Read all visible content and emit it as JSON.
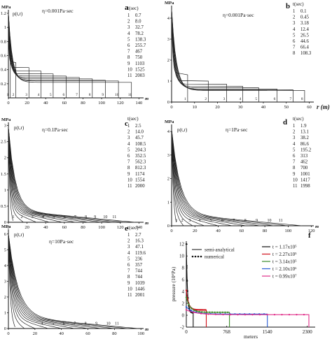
{
  "chart_data": [
    {
      "panel": "a",
      "type": "line",
      "ylabel": "MPa",
      "curve_label": "p(t,r)",
      "xunit": "m",
      "annotation": "η=0.001Pa·sec",
      "legend_title": "t(sec)",
      "legend": [
        [
          "1",
          "0.7"
        ],
        [
          "2",
          "8.0"
        ],
        [
          "3",
          "32.7"
        ],
        [
          "4",
          "78.2"
        ],
        [
          "5",
          "138.3"
        ],
        [
          "6",
          "255.7"
        ],
        [
          "7",
          "467"
        ],
        [
          "8",
          "750"
        ],
        [
          "9",
          "1103"
        ],
        [
          "10",
          "1525"
        ],
        [
          "11",
          "2003"
        ]
      ],
      "xticks": [
        "0",
        "20",
        "40",
        "60",
        "80",
        "100",
        "120",
        "140"
      ],
      "yticks": [
        "0.2",
        "0.4",
        "0.6",
        "0.8",
        "1",
        "1.2"
      ],
      "xlim": [
        0,
        145
      ],
      "ylim": [
        0,
        1.25
      ],
      "fronts": [
        2,
        8,
        22,
        35,
        48,
        62,
        76,
        90,
        104,
        118,
        132
      ],
      "levels": [
        0.6,
        0.5,
        0.43,
        0.38,
        0.34,
        0.31,
        0.29,
        0.27,
        0.25,
        0.24,
        0.22
      ],
      "curve_numbers": [
        "1",
        "2",
        "3",
        "4",
        "5",
        "6",
        "7",
        "8",
        "9",
        "10",
        "11"
      ]
    },
    {
      "panel": "b",
      "type": "line",
      "ylabel": "MPa",
      "xlabel": "r (m)",
      "annotation": "η=0.001Pa·sec",
      "legend_title": "t(sec)",
      "legend": [
        [
          "1",
          "0.1"
        ],
        [
          "2",
          "0.45"
        ],
        [
          "3",
          "3.18"
        ],
        [
          "4",
          "12.4"
        ],
        [
          "5",
          "26.5"
        ],
        [
          "6",
          "44.6"
        ],
        [
          "7",
          "66.4"
        ],
        [
          "8",
          "108.3"
        ]
      ],
      "xticks": [
        "0",
        "10",
        "20",
        "30",
        "40",
        "50",
        "60"
      ],
      "yticks": [
        "0",
        "1",
        "2",
        "3",
        "4"
      ],
      "xlim": [
        0,
        62
      ],
      "ylim": [
        0,
        4.6
      ],
      "fronts": [
        7,
        16,
        24,
        31,
        38,
        46,
        53,
        58
      ],
      "levels": [
        1.3,
        1.0,
        0.85,
        0.75,
        0.68,
        0.62,
        0.58,
        0.55
      ],
      "curve_numbers": [
        "1",
        "2",
        "3",
        "4",
        "5",
        "6",
        "7",
        "8"
      ]
    },
    {
      "panel": "c",
      "type": "line",
      "ylabel": "MPa",
      "curve_label": "p(t,r)",
      "xunit": "m",
      "annotation": "η=0.1Pa·sec",
      "legend_title": "t(sec)",
      "legend": [
        [
          "1",
          "2.5"
        ],
        [
          "2",
          "14.0"
        ],
        [
          "3",
          "45.7"
        ],
        [
          "4",
          "108.5"
        ],
        [
          "5",
          "204.3"
        ],
        [
          "6",
          "352.5"
        ],
        [
          "7",
          "562.3"
        ],
        [
          "8",
          "812.3"
        ],
        [
          "9",
          "1174"
        ],
        [
          "10",
          "1554"
        ],
        [
          "11",
          "2000"
        ]
      ],
      "xticks": [
        "0",
        "20",
        "40",
        "60",
        "80",
        "100",
        "120",
        "140"
      ],
      "yticks": [
        "0",
        "0.5",
        "1",
        "1.5",
        "2",
        "2.5",
        "3"
      ],
      "xlim": [
        0,
        145
      ],
      "ylim": [
        0,
        3.1
      ],
      "fronts": [
        5,
        16,
        30,
        44,
        58,
        72,
        86,
        100,
        112,
        124,
        136
      ],
      "curve_numbers": [
        "1",
        "2",
        "3",
        "4",
        "5",
        "6",
        "7",
        "8",
        "9",
        "10",
        "11"
      ]
    },
    {
      "panel": "d",
      "type": "line",
      "ylabel": "MPa",
      "curve_label": "p(t,r)",
      "xunit": "m",
      "annotation": "η=1Pa·sec",
      "legend_title": "t(sec)",
      "legend": [
        [
          "1",
          "1.9"
        ],
        [
          "2",
          "13.1"
        ],
        [
          "3",
          "38.2"
        ],
        [
          "4",
          "86.6"
        ],
        [
          "5",
          "195.2"
        ],
        [
          "6",
          "313"
        ],
        [
          "7",
          "462"
        ],
        [
          "8",
          "700"
        ],
        [
          "9",
          "1001"
        ],
        [
          "10",
          "1417"
        ],
        [
          "11",
          "1998"
        ]
      ],
      "xticks": [
        "0",
        "20",
        "40",
        "60",
        "80",
        "100",
        "120"
      ],
      "yticks": [
        "0",
        "1",
        "2",
        "3",
        "4"
      ],
      "xlim": [
        0,
        122
      ],
      "ylim": [
        0,
        4.3
      ],
      "fronts": [
        4,
        10,
        18,
        28,
        40,
        52,
        64,
        76,
        88,
        100,
        112
      ],
      "curve_numbers": [
        "1",
        "2",
        "3",
        "4",
        "5",
        "6",
        "7",
        "8",
        "9",
        "10",
        "11"
      ]
    },
    {
      "panel": "e",
      "type": "line",
      "ylabel": "MPa",
      "curve_label": "p(t,r)",
      "xunit": "m",
      "annotation": "η=10Pa·sec",
      "legend_title": "t(sec)",
      "legend": [
        [
          "1",
          "2.7"
        ],
        [
          "2",
          "16.3"
        ],
        [
          "3",
          "47.1"
        ],
        [
          "4",
          "119.6"
        ],
        [
          "5",
          "236"
        ],
        [
          "6",
          "357"
        ],
        [
          "7",
          "744"
        ],
        [
          "8",
          "744"
        ],
        [
          "9",
          "1039"
        ],
        [
          "10",
          "1446"
        ],
        [
          "11",
          "2001"
        ]
      ],
      "xticks": [
        "0",
        "20",
        "40",
        "60",
        "80",
        "100"
      ],
      "yticks": [
        "0",
        "1",
        "2",
        "3",
        "4",
        "5",
        "6"
      ],
      "xlim": [
        0,
        102
      ],
      "ylim": [
        0,
        6.3
      ],
      "fronts": [
        5,
        12,
        20,
        30,
        40,
        50,
        60,
        70,
        80,
        90,
        98
      ],
      "curve_numbers": [
        "4",
        "5",
        "6",
        "7",
        "8",
        "9",
        "10",
        "11"
      ]
    },
    {
      "panel": "f",
      "type": "line",
      "ylabel": "pressure (10⁶Pa)",
      "xlabel": "meters",
      "xticks": [
        "0",
        "768",
        "1540",
        "2300"
      ],
      "yticks": [
        "-2",
        "0",
        "2",
        "4",
        "6",
        "8",
        "10",
        "12"
      ],
      "xlim": [
        0,
        2450
      ],
      "ylim": [
        -2,
        12.5
      ],
      "method_legend": [
        "semi-analytical",
        "numerical"
      ],
      "series": [
        {
          "name": "t = 1.17x10⁵",
          "color": "#111111",
          "r_end": 130,
          "plateau": 0.4
        },
        {
          "name": "t = 2.27x10⁵",
          "color": "#d0101a",
          "r_end": 380,
          "plateau": 0.9
        },
        {
          "name": "t = 3.14x10⁵",
          "color": "#3a8a2a",
          "r_end": 820,
          "plateau": 0.5
        },
        {
          "name": "t = 2.10x10⁶",
          "color": "#2b5fd6",
          "r_end": 1540,
          "plateau": 0.2
        },
        {
          "name": "t = 0.99x10⁷",
          "color": "#e0308a",
          "r_end": 2330,
          "plateau": 0.1
        }
      ]
    }
  ],
  "panel_letters": {
    "a": "a",
    "b": "b",
    "c": "c",
    "d": "d",
    "e": "e",
    "f": "f"
  }
}
